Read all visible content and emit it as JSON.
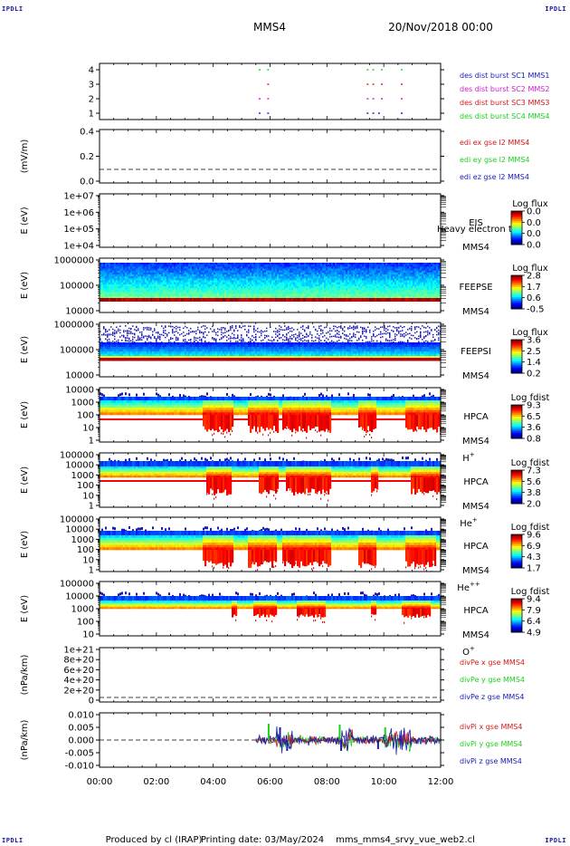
{
  "header": {
    "spacecraft": "MMS4",
    "datetime": "20/Nov/2018 00:00",
    "corner_label": "IPDLI"
  },
  "footer": {
    "produced_by": "Produced by cl (IRAP)",
    "printing_date": "Printing date: 03/May/2024",
    "script_name": "mms_mms4_srvy_vue_web2.cl"
  },
  "time_axis": {
    "range_hours": [
      0,
      12
    ],
    "tick_labels": [
      "00:00",
      "02:00",
      "04:00",
      "06:00",
      "08:00",
      "10:00",
      "12:00"
    ]
  },
  "chart_data": [
    {
      "id": "burst",
      "type": "scatter",
      "ylabel": "",
      "ylim": [
        0.5,
        4.5
      ],
      "y_ticks": [
        "4",
        "3",
        "2",
        "1"
      ],
      "series": [
        {
          "name": "des dist burst SC1 MMS1",
          "color": "#1a1ab4",
          "y": 1,
          "x_hours": [
            5.6,
            5.9,
            9.4,
            9.6,
            9.8,
            10.6
          ]
        },
        {
          "name": "des dist burst SC2 MMS2",
          "color": "#d01ad0",
          "y": 2,
          "x_hours": [
            5.6,
            5.9,
            9.4,
            9.6,
            9.9,
            10.6
          ]
        },
        {
          "name": "des dist burst SC3 MMS3",
          "color": "#d01a1a",
          "y": 3,
          "x_hours": [
            5.9,
            9.4,
            9.6,
            9.9,
            10.6
          ]
        },
        {
          "name": "des dist burst SC4 MMS4",
          "color": "#1ad01a",
          "y": 4,
          "x_hours": [
            5.6,
            5.9,
            9.4,
            9.6,
            9.9,
            10.6
          ]
        }
      ]
    },
    {
      "id": "edi",
      "type": "line",
      "ylabel": "(mV/m)",
      "ylim": [
        -0.1,
        0.55
      ],
      "y_ticks": [
        "0.4",
        "0.2",
        "0.0"
      ],
      "zero_line": true,
      "series": [
        {
          "name": "edi ex gse l2 MMS4",
          "color": "#d01a1a"
        },
        {
          "name": "edi ey gse l2 MMS4",
          "color": "#1ad01a"
        },
        {
          "name": "edi ez gse l2 MMS4",
          "color": "#1a1ab4"
        }
      ]
    },
    {
      "id": "eis",
      "type": "heatmap",
      "ylabel": "E (eV)",
      "y_ticks": [
        "1e+07",
        "1e+06",
        "1e+05",
        "1e+04"
      ],
      "instrument": [
        "EIS",
        "MMS4"
      ],
      "overlay_text": "Heavy electron to",
      "colorbar_title": "Log flux",
      "colorbar_ticks": [
        "0.0",
        "0.0",
        "0.0",
        "0.0"
      ],
      "empty": true
    },
    {
      "id": "feepse",
      "type": "heatmap",
      "ylabel": "E (eV)",
      "y_ticks": [
        "1000000",
        "100000",
        "10000"
      ],
      "instrument": [
        "FEEPSE",
        "MMS4"
      ],
      "colorbar_title": "Log flux",
      "colorbar_ticks": [
        "2.8",
        "1.7",
        "0.6",
        "-0.5"
      ],
      "pattern": "feepse"
    },
    {
      "id": "feepsi",
      "type": "heatmap",
      "ylabel": "E (eV)",
      "y_ticks": [
        "1000000",
        "100000",
        "10000"
      ],
      "instrument": [
        "FEEPSI",
        "MMS4"
      ],
      "colorbar_title": "Log flux",
      "colorbar_ticks": [
        "3.6",
        "2.5",
        "1.4",
        "0.2"
      ],
      "pattern": "feepsi"
    },
    {
      "id": "hpca-h",
      "type": "heatmap",
      "ylabel": "E (eV)",
      "y_ticks": [
        "10000",
        "1000",
        "100",
        "10",
        "1"
      ],
      "instrument": [
        "HPCA",
        "MMS4"
      ],
      "species": "H",
      "species_sup": "+",
      "colorbar_title": "Log fdist",
      "colorbar_ticks": [
        "9.3",
        "6.5",
        "3.6",
        "0.8"
      ],
      "pattern": "hplus"
    },
    {
      "id": "hpca-he",
      "type": "heatmap",
      "ylabel": "E (eV)",
      "y_ticks": [
        "100000",
        "10000",
        "1000",
        "100",
        "10",
        "1"
      ],
      "instrument": [
        "HPCA",
        "MMS4"
      ],
      "species": "He",
      "species_sup": "+",
      "colorbar_title": "Log fdist",
      "colorbar_ticks": [
        "7.3",
        "5.6",
        "3.8",
        "2.0"
      ],
      "pattern": "heplus"
    },
    {
      "id": "hpca-he2",
      "type": "heatmap",
      "ylabel": "E (eV)",
      "y_ticks": [
        "100000",
        "10000",
        "1000",
        "100",
        "10",
        "1"
      ],
      "instrument": [
        "HPCA",
        "MMS4"
      ],
      "species": "He",
      "species_sup": "++",
      "colorbar_title": "Log fdist",
      "colorbar_ticks": [
        "9.6",
        "6.9",
        "4.3",
        "1.7"
      ],
      "pattern": "heplusplus"
    },
    {
      "id": "hpca-o",
      "type": "heatmap",
      "ylabel": "E (eV)",
      "y_ticks": [
        "100000",
        "10000",
        "1000",
        "100",
        "10"
      ],
      "instrument": [
        "HPCA",
        "MMS4"
      ],
      "species": "O",
      "species_sup": "+",
      "colorbar_title": "Log fdist",
      "colorbar_ticks": [
        "9.4",
        "7.9",
        "6.4",
        "4.9"
      ],
      "pattern": "oplus"
    },
    {
      "id": "divpe",
      "type": "line",
      "ylabel": "(nPa/km)",
      "ylim": [
        -0.05,
        1.05
      ],
      "y_ticks": [
        "1e+21",
        "8e+20",
        "6e+20",
        "4e+20",
        "2e+20",
        "0"
      ],
      "zero_line": true,
      "series": [
        {
          "name": "divPe x gse MMS4",
          "color": "#d01a1a"
        },
        {
          "name": "divPe y gse MMS4",
          "color": "#1ad01a"
        },
        {
          "name": "divPe z gse MMS4",
          "color": "#1a1ab4"
        }
      ]
    },
    {
      "id": "divpi",
      "type": "line",
      "ylabel": "(nPa/km)",
      "ylim": [
        -0.015,
        0.014
      ],
      "y_ticks": [
        "0.010",
        "0.005",
        "0.000",
        "-0.005",
        "-0.010"
      ],
      "zero_line": true,
      "data_start_hour": 5.5,
      "series": [
        {
          "name": "divPi x gse MMS4",
          "color": "#d01a1a"
        },
        {
          "name": "divPi y gse MMS4",
          "color": "#1ad01a"
        },
        {
          "name": "divPi z gse MMS4",
          "color": "#1a1ab4"
        }
      ]
    }
  ]
}
